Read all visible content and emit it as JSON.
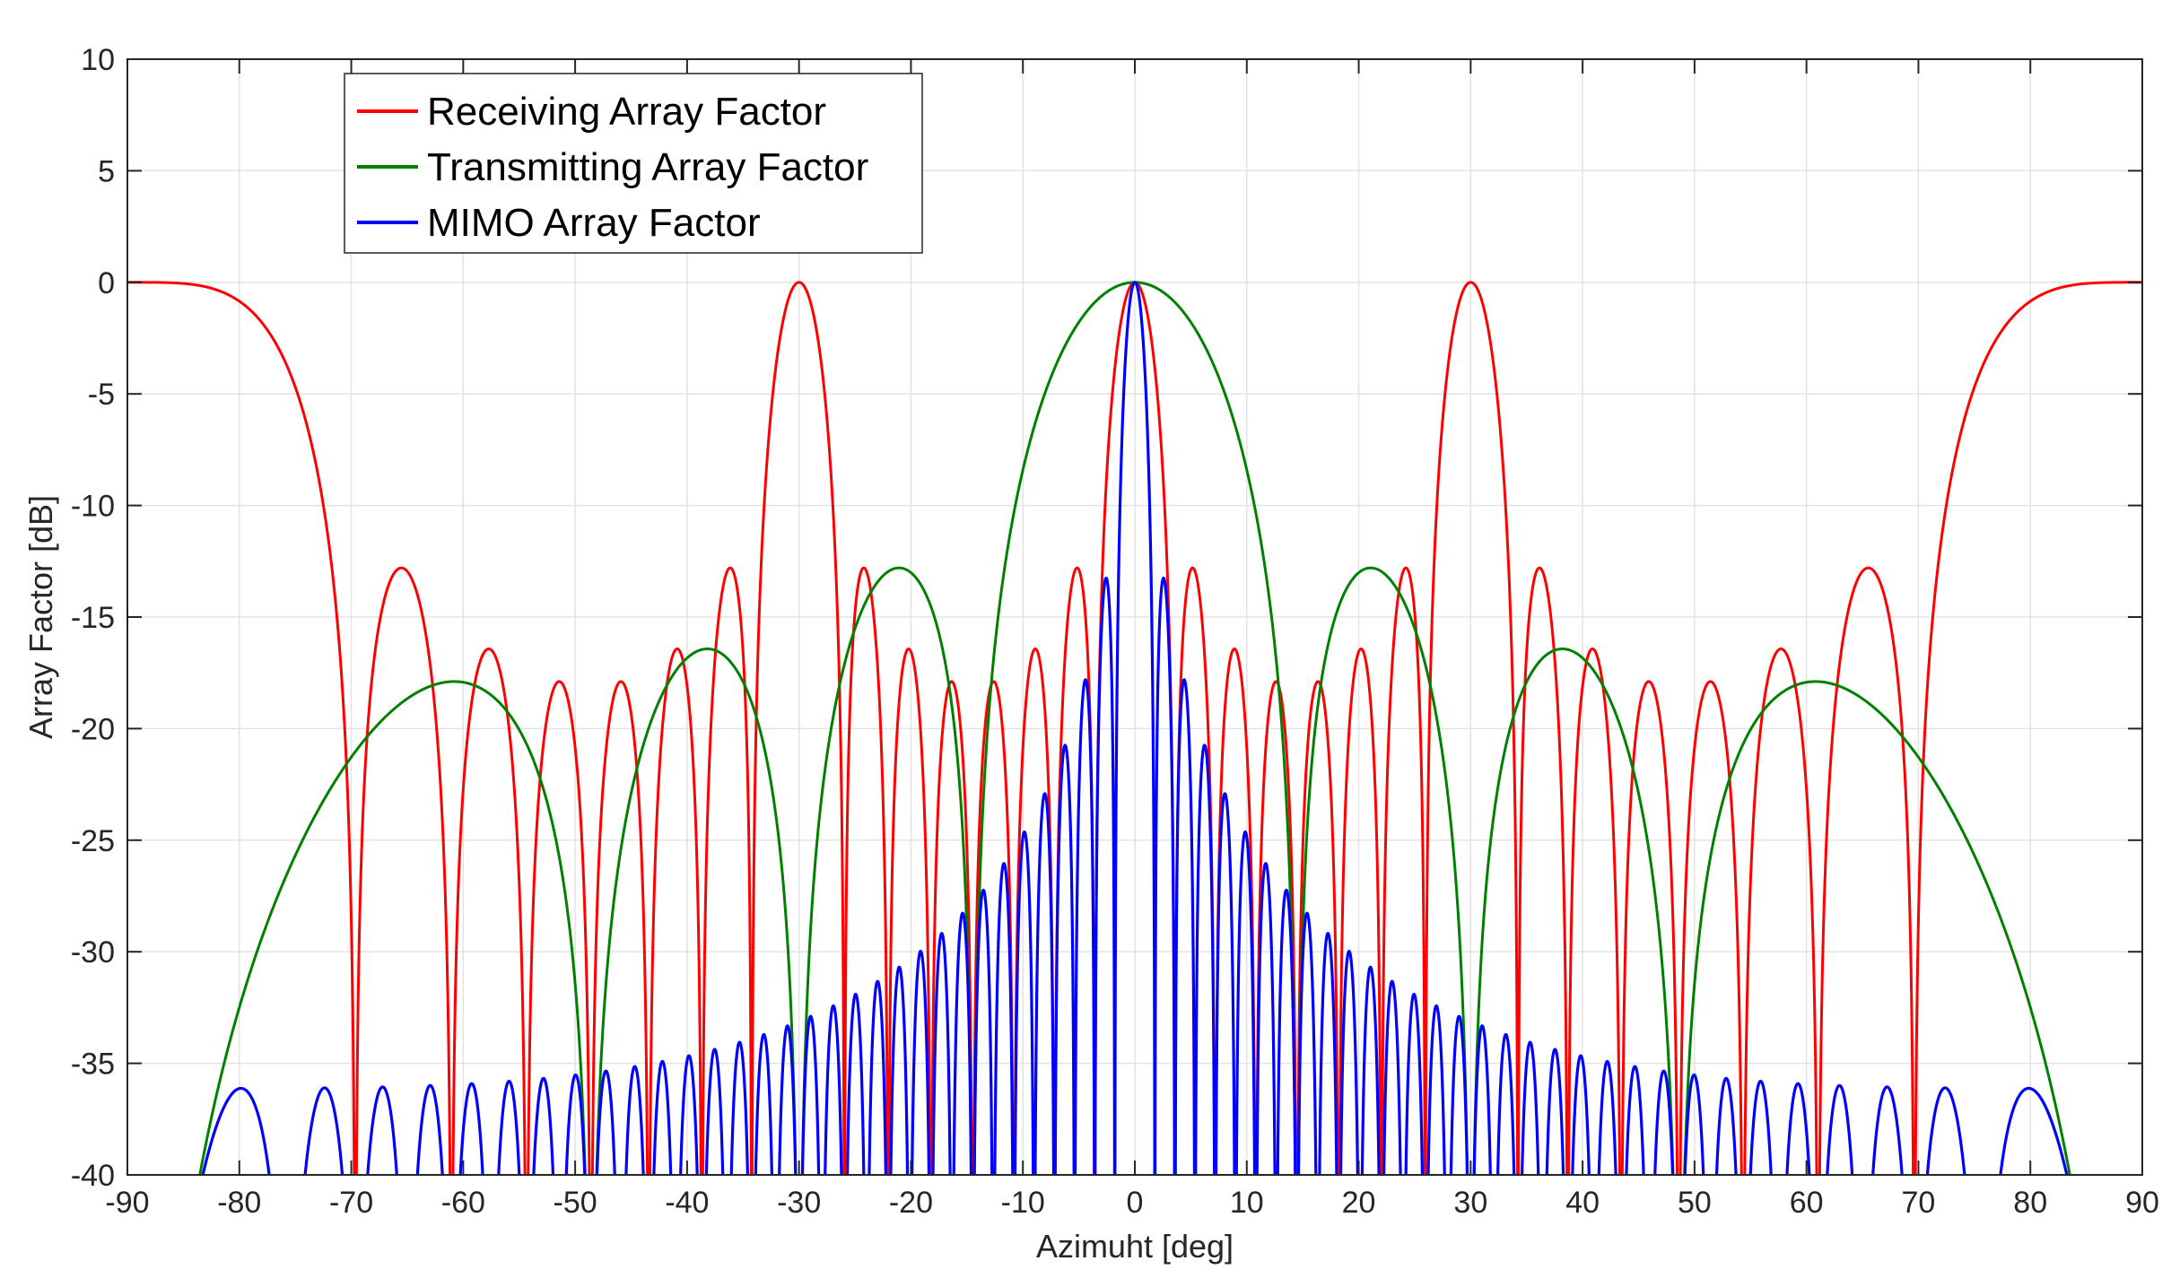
{
  "chart_data": {
    "type": "line",
    "title": "",
    "xlabel": "Azimuht [deg]",
    "ylabel": "Array Factor [dB]",
    "xlim": [
      -90,
      90
    ],
    "ylim": [
      -40,
      10
    ],
    "xticks": [
      -90,
      -80,
      -70,
      -60,
      -50,
      -40,
      -30,
      -20,
      -10,
      0,
      10,
      20,
      30,
      40,
      50,
      60,
      70,
      80,
      90
    ],
    "yticks": [
      10,
      5,
      0,
      -5,
      -10,
      -15,
      -20,
      -25,
      -30,
      -35,
      -40
    ],
    "grid": true,
    "legend_position": "top-left",
    "series": [
      {
        "name": "Receiving Array Factor",
        "color": "#ff0000",
        "N": 8,
        "spacing_wavelengths": 2,
        "x": [
          -90,
          -80,
          -75.5,
          -72.7,
          -70.2,
          -67.6,
          -65.1,
          -63.0,
          -60.8,
          -59.2,
          -58.5,
          -55.9,
          -53.1,
          -51.4,
          -48.6,
          -45.9,
          -44.8,
          -42.1,
          -38.6,
          -35.1,
          -33.0,
          -30.0,
          -27.0,
          -24.5,
          -22.0,
          -19.0,
          -16.5,
          -14.5,
          -12.5,
          -10.0,
          -7.0,
          -5.0,
          -2.5,
          0,
          2.5,
          5.0,
          7.0,
          10.0,
          12.5,
          14.5,
          16.5,
          19.0,
          22.0,
          24.5,
          27.0,
          30.0,
          33.0,
          35.1,
          38.6,
          42.1,
          44.8,
          45.9,
          48.6,
          51.4,
          53.1,
          55.9,
          58.5,
          59.2,
          60.8,
          63.0,
          65.1,
          67.6,
          70.2,
          72.7,
          75.5,
          80,
          90
        ],
        "y": [
          0,
          -5,
          -40,
          -12.8,
          -40,
          -16.5,
          -40,
          -17.9,
          -40,
          -17.9,
          -40,
          -16.5,
          -40,
          -12.8,
          0,
          -12.8,
          -40,
          -16.5,
          -17.9,
          -16.5,
          -12.8,
          0,
          -12.8,
          -16.5,
          -17.9,
          -16.5,
          -12.8,
          0,
          -12.8,
          -16.5,
          -17.9,
          -16.5,
          -12.8,
          0,
          -12.8,
          -16.5,
          -17.9,
          -16.5,
          -12.8,
          0,
          -12.8,
          -16.5,
          -17.9,
          -16.5,
          -12.8,
          0,
          -12.8,
          -16.5,
          -17.9,
          -16.5,
          -40,
          -12.8,
          0,
          -12.8,
          -40,
          -16.5,
          -40,
          -17.9,
          -40,
          -17.9,
          -40,
          -16.5,
          -40,
          -12.8,
          -40,
          -5,
          0
        ]
      },
      {
        "name": "Transmitting Array Factor",
        "color": "#008000",
        "N": 8,
        "spacing_wavelengths": 0.5,
        "x": [
          -90,
          -83.6,
          -60.8,
          -48.6,
          -38.6,
          -30.0,
          -21.0,
          -14.5,
          -7.2,
          0,
          7.2,
          14.5,
          21.0,
          30.0,
          38.6,
          48.6,
          60.8,
          83.6,
          90
        ],
        "y": [
          -40,
          -40,
          -17.9,
          -40,
          -16.5,
          -40,
          -12.8,
          -40,
          -9.0,
          0,
          -9.0,
          -40,
          -12.8,
          -40,
          -16.5,
          -40,
          -17.9,
          -40,
          -40
        ]
      },
      {
        "name": "MIMO Array Factor",
        "color": "#0000ff",
        "N": 64,
        "spacing_wavelengths": 0.5,
        "x": [
          -90,
          -80.0,
          -72.7,
          -67.6,
          -63.0,
          -59.2,
          -55.9,
          -53.1,
          -30.0,
          -20.0,
          -10.0,
          -5.8,
          -2.6,
          0,
          2.6,
          5.8,
          10.0,
          20.0,
          30.0,
          53.1,
          55.9,
          59.2,
          63.0,
          67.6,
          72.7,
          80.0,
          90
        ],
        "y": [
          -40,
          -36.1,
          -36.1,
          -36.0,
          -36.0,
          -35.9,
          -35.8,
          -35.6,
          -33.3,
          -30.0,
          -25.0,
          -17.9,
          -13.3,
          0,
          -13.3,
          -17.9,
          -25.0,
          -30.0,
          -33.3,
          -35.6,
          -35.8,
          -35.9,
          -36.0,
          -36.0,
          -36.1,
          -36.1,
          -40
        ]
      }
    ]
  }
}
